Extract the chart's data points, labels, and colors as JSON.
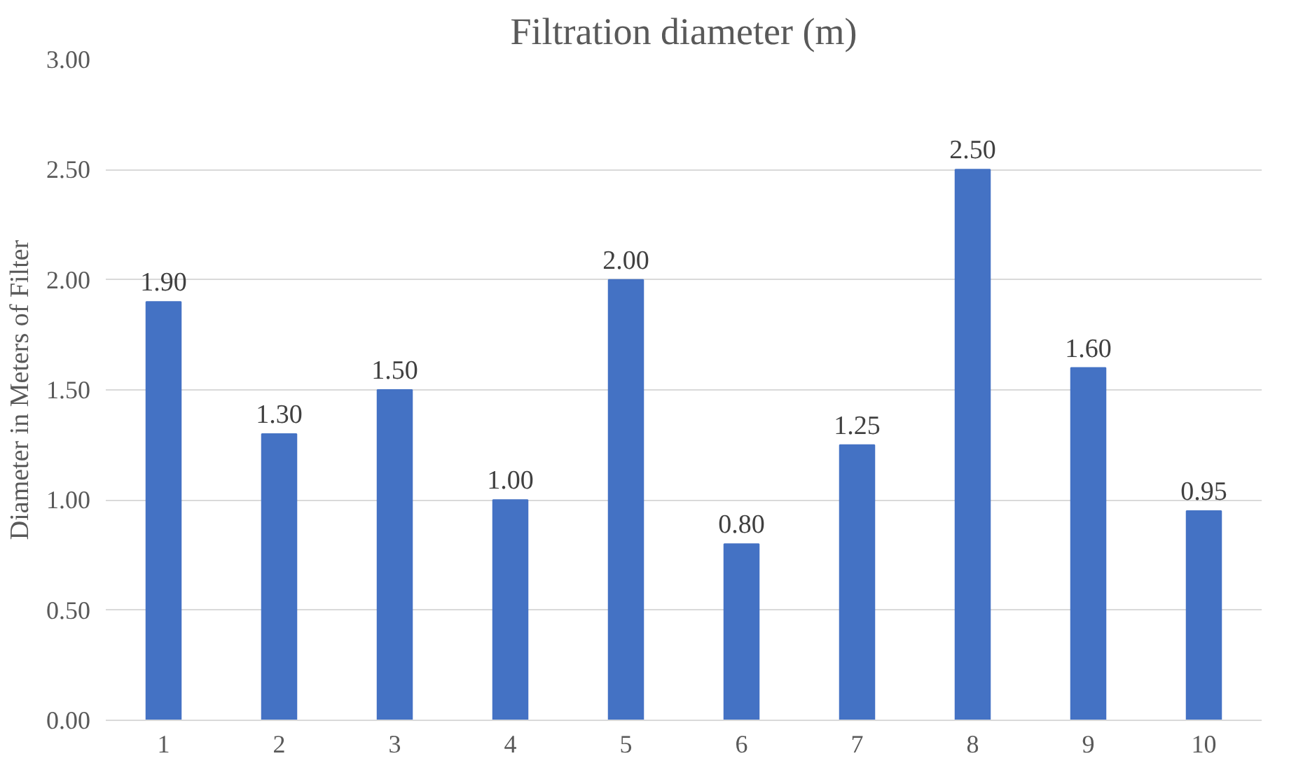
{
  "chart_data": {
    "type": "bar",
    "title": "Filtration diameter (m)",
    "ylabel": "Diameter in Meters of Filter",
    "categories": [
      "1",
      "2",
      "3",
      "4",
      "5",
      "6",
      "7",
      "8",
      "9",
      "10"
    ],
    "values": [
      1.9,
      1.3,
      1.5,
      1.0,
      2.0,
      0.8,
      1.25,
      2.5,
      1.6,
      0.95
    ],
    "value_labels": [
      "1.90",
      "1.30",
      "1.50",
      "1.00",
      "2.00",
      "0.80",
      "1.25",
      "2.50",
      "1.60",
      "0.95"
    ],
    "color": "#4472c4",
    "ylim": [
      0,
      3
    ],
    "yticks": [
      {
        "value": 0,
        "label": "0.00"
      },
      {
        "value": 0.5,
        "label": "0.50"
      },
      {
        "value": 1,
        "label": "1.00"
      },
      {
        "value": 1.5,
        "label": "1.50"
      },
      {
        "value": 2,
        "label": "2.00"
      },
      {
        "value": 2.5,
        "label": "2.50"
      },
      {
        "value": 3,
        "label": "3.00"
      }
    ],
    "grid": "y"
  }
}
